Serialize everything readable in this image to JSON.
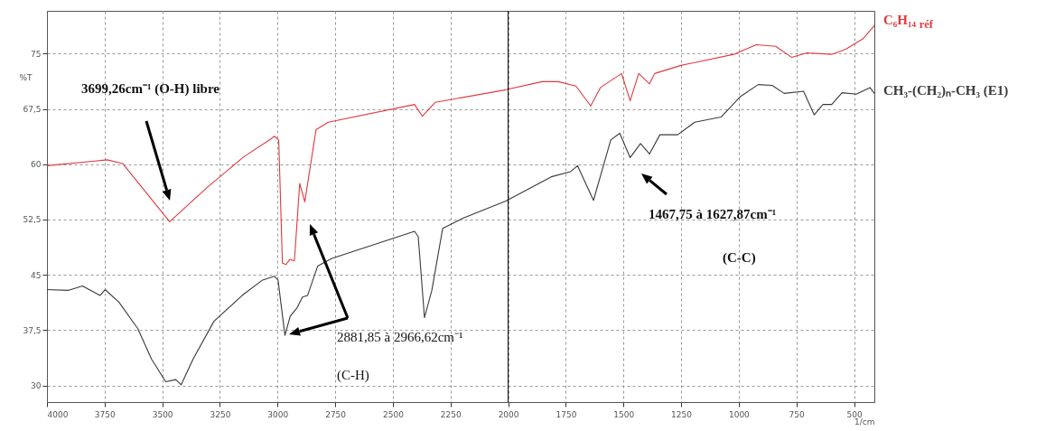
{
  "chart_data": {
    "type": "line",
    "xlabel": "1/cm",
    "ylabel": "%T",
    "xlim": [
      4000,
      412
    ],
    "ylim": [
      27.75,
      80.8
    ],
    "xticks": [
      4000,
      3750,
      3500,
      3250,
      3000,
      2750,
      2500,
      2250,
      2000,
      1750,
      1500,
      1250,
      1000,
      750,
      500
    ],
    "yticks": [
      30,
      {
        "value": 37.5,
        "label": "37,5"
      },
      45,
      {
        "value": 52.5,
        "label": "52,5"
      },
      60,
      {
        "value": 67.5,
        "label": "67,5"
      },
      75
    ],
    "grid": true,
    "line_style": "solid",
    "series": [
      {
        "name": "C₆H₁₄ $_{réf}$",
        "color": "#e0393e",
        "x": [
          4000,
          3802,
          3739,
          3672,
          3468,
          3304,
          3147,
          3030,
          3014,
          2995,
          2979,
          2963,
          2947,
          2927,
          2904,
          2882,
          2833,
          2780,
          2406,
          2372,
          2316,
          2010,
          1853,
          1783,
          1706,
          1642,
          1600,
          1508,
          1471,
          1434,
          1387,
          1365,
          1250,
          1022,
          924,
          840,
          771,
          704,
          597,
          536,
          462,
          412
        ],
        "values": [
          59.8,
          60.4,
          60.6,
          60.1,
          52.2,
          56.9,
          61,
          63.4,
          63.8,
          63.3,
          46.6,
          46.4,
          47.1,
          46.9,
          57.4,
          54.9,
          64.7,
          65.7,
          68.1,
          66.5,
          68.4,
          70.1,
          71.2,
          71.2,
          70.6,
          67.9,
          70.4,
          72.3,
          68.6,
          72.3,
          70.9,
          72.3,
          73.4,
          74.9,
          76.2,
          76,
          74.5,
          75.1,
          74.9,
          75.6,
          77,
          78.8
        ]
      },
      {
        "name": "CH₃-(CH₂)ₙ-CH₃ (E1)",
        "color": "#3a3a3a",
        "x": [
          4000,
          3906,
          3846,
          3770,
          3748,
          3688,
          3606,
          3547,
          3485,
          3441,
          3418,
          3366,
          3276,
          3154,
          3065,
          3014,
          2998,
          2968,
          2945,
          2916,
          2892,
          2870,
          2826,
          2767,
          2406,
          2390,
          2363,
          2331,
          2284,
          2194,
          2010,
          1813,
          1729,
          1699,
          1630,
          1555,
          1516,
          1471,
          1426,
          1387,
          1342,
          1265,
          1191,
          1077,
          992,
          916,
          855,
          803,
          719,
          673,
          635,
          597,
          552,
          491,
          431,
          412
        ],
        "values": [
          43,
          42.9,
          43.5,
          42.2,
          43,
          41.3,
          37.7,
          33.6,
          30.5,
          30.8,
          30.1,
          33.6,
          38.7,
          42.2,
          44.3,
          44.8,
          44.3,
          36.8,
          39.4,
          40.5,
          42,
          42.2,
          46.2,
          47.2,
          50.9,
          50.2,
          39.2,
          42.9,
          51.3,
          52.7,
          55,
          58.3,
          59,
          59.8,
          55.1,
          63.3,
          64.2,
          60.9,
          62.8,
          61.4,
          64,
          64,
          65.7,
          66.4,
          69.2,
          70.8,
          70.7,
          69.6,
          69.9,
          66.7,
          68.1,
          68.1,
          69.7,
          69.5,
          70.4,
          69.6
        ]
      }
    ],
    "ref_lines": [
      {
        "axis": "x",
        "value": 2000,
        "color": "#000000"
      }
    ],
    "annotations": [
      "3699,26cm⁻¹ (O-H) libre",
      "2881,85 à 2966,62cm⁻¹",
      "(C-H)",
      "1467,75 à 1627,87cm⁻¹",
      "(C-C)"
    ]
  }
}
